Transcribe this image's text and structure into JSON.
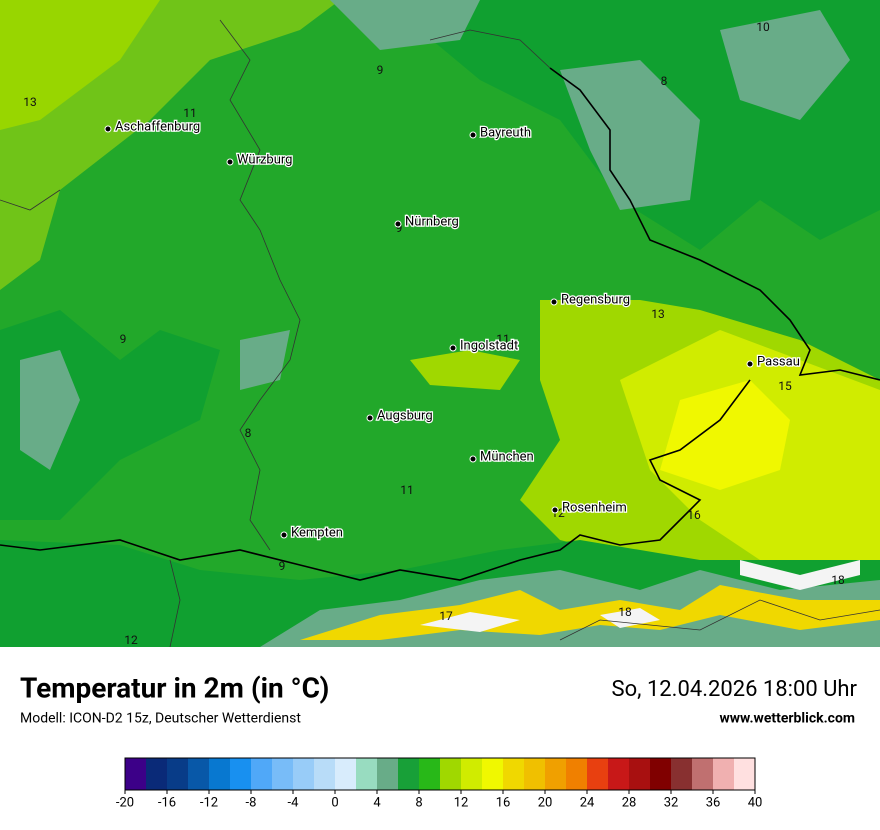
{
  "header": {
    "title": "Temperatur in 2m (in °C)",
    "model": "Modell: ICON-D2 15z, Deutscher Wetterdienst",
    "datetime": "So, 12.04.2026 18:00 Uhr",
    "website": "www.wetterblick.com"
  },
  "cities": [
    "Aschaffenburg",
    "Würzburg",
    "Bayreuth",
    "Nürnberg",
    "Regensburg",
    "Ingolstadt",
    "Passau",
    "Augsburg",
    "München",
    "Rosenheim",
    "Kempten"
  ],
  "contour_labels": [
    13,
    11,
    9,
    10,
    8,
    9,
    13,
    9,
    11,
    15,
    8,
    11,
    16,
    12,
    9,
    18,
    17,
    18,
    12
  ],
  "colorbar": {
    "lim": [
      -20,
      40
    ],
    "ticks": [
      -20,
      -16,
      -12,
      -8,
      -4,
      0,
      4,
      8,
      12,
      16,
      20,
      24,
      28,
      32,
      36,
      40
    ],
    "colors": [
      "#3c0088",
      "#0a2a78",
      "#083c88",
      "#0858a8",
      "#0878d0",
      "#1890f0",
      "#50a8f8",
      "#78bcf8",
      "#98ccf8",
      "#b8dcf8",
      "#d8ecfc",
      "#98dcc0",
      "#68ac88",
      "#18a038",
      "#28b818",
      "#a0d800",
      "#d0ec00",
      "#f0f800",
      "#f0d800",
      "#f0c000",
      "#f0a000",
      "#f08000",
      "#e84010",
      "#c81818",
      "#a81010",
      "#800000",
      "#883030",
      "#c07070",
      "#f0b0b0",
      "#ffe0e0"
    ]
  }
}
